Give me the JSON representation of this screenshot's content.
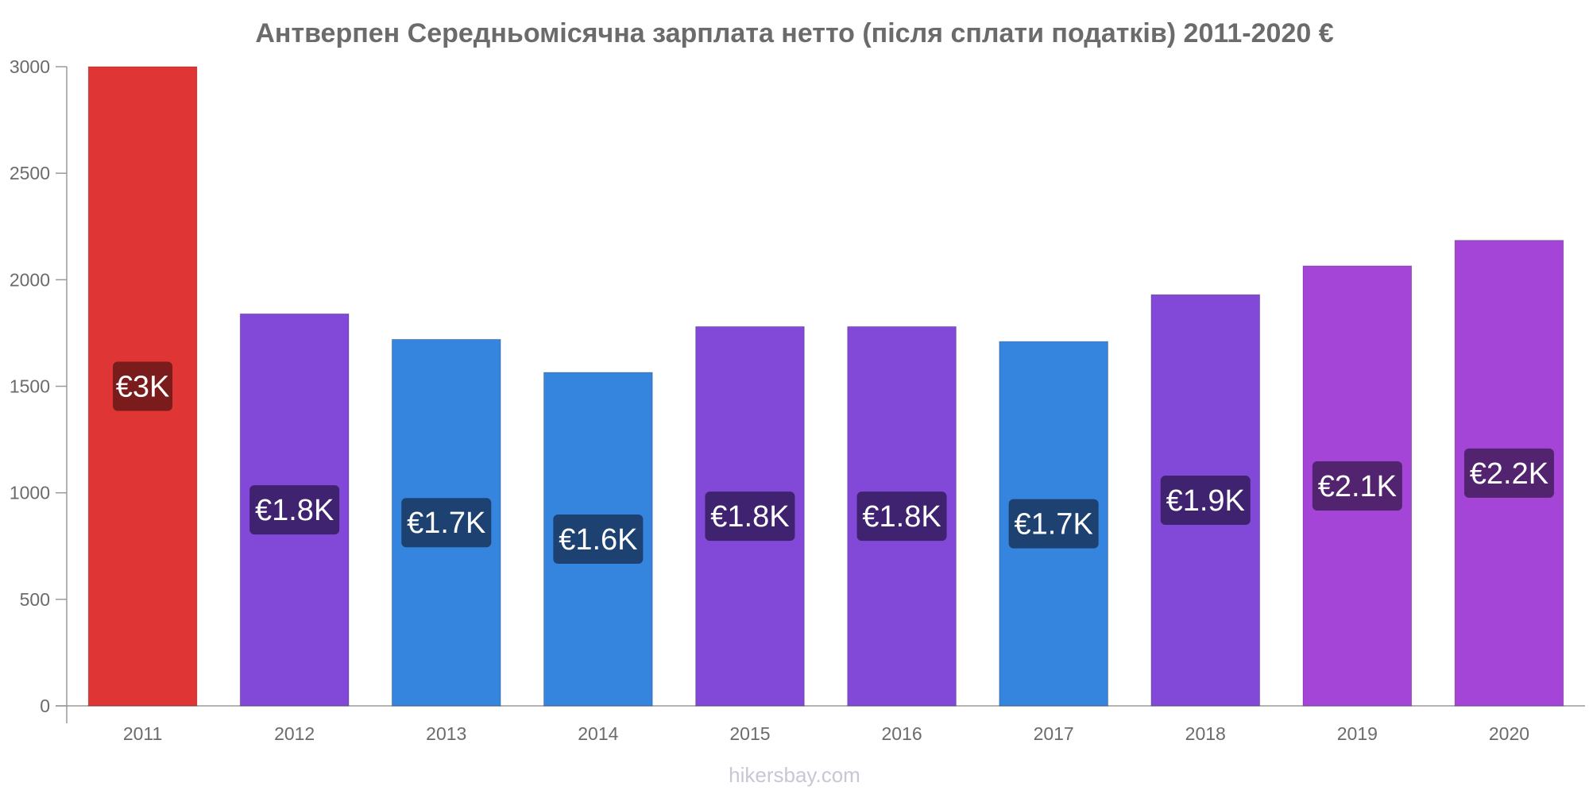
{
  "chart_data": {
    "type": "bar",
    "title": "Антверпен Середньомісячна зарплата нетто (після сплати податків) 2011-2020 €",
    "xlabel": "",
    "ylabel": "",
    "categories": [
      "2011",
      "2012",
      "2013",
      "2014",
      "2015",
      "2016",
      "2017",
      "2018",
      "2019",
      "2020"
    ],
    "values": [
      3000,
      1840,
      1720,
      1565,
      1780,
      1780,
      1710,
      1930,
      2065,
      2185
    ],
    "data_labels": [
      "€3K",
      "€1.8K",
      "€1.7K",
      "€1.6K",
      "€1.8K",
      "€1.8K",
      "€1.7K",
      "€1.9K",
      "€2.1K",
      "€2.2K"
    ],
    "ylim": [
      0,
      3000
    ],
    "yticks": [
      0,
      500,
      1000,
      1500,
      2000,
      2500,
      3000
    ],
    "grid": false,
    "legend": "none",
    "bar_colors": [
      "#e03535",
      "#8249d8",
      "#3584de",
      "#3584de",
      "#8249d8",
      "#8249d8",
      "#3584de",
      "#8249d8",
      "#a545d8",
      "#a545d8"
    ],
    "label_bg_colors": [
      "#7a1c1c",
      "#3f2370",
      "#1d4170",
      "#1d4170",
      "#3f2370",
      "#3f2370",
      "#1d4170",
      "#3f2370",
      "#52236e",
      "#52236e"
    ]
  },
  "watermark": "hikersbay.com"
}
